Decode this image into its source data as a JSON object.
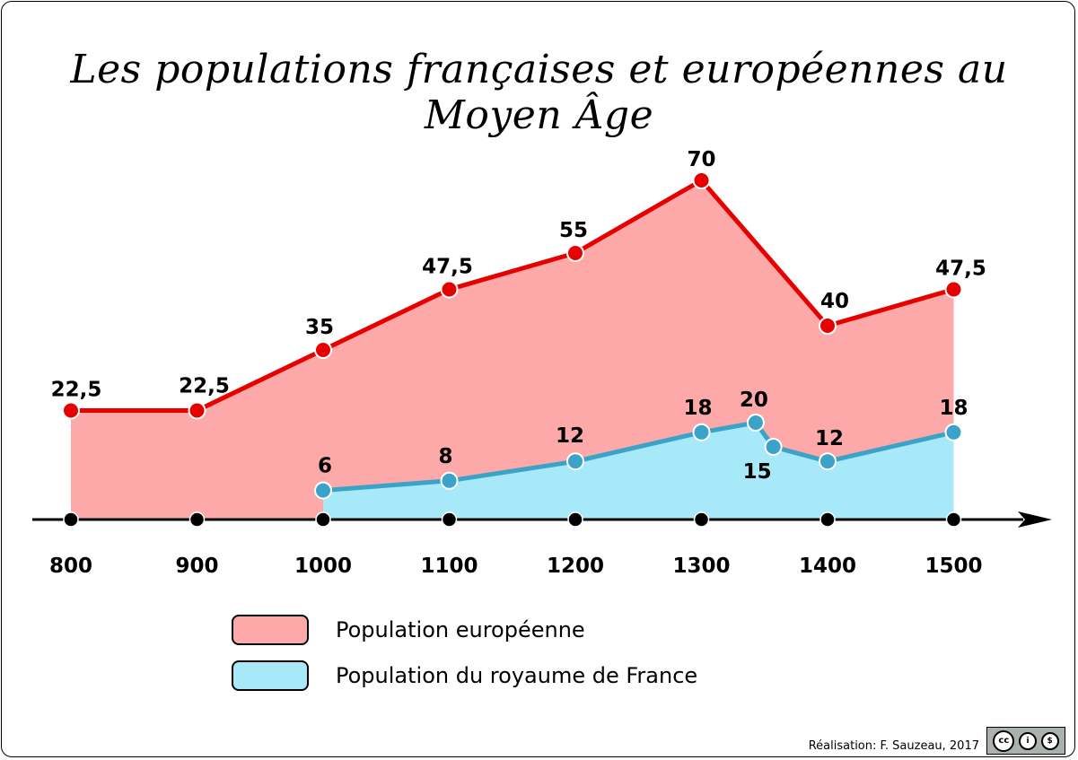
{
  "chart_data": {
    "type": "area",
    "title": "Les populations françaises et européennes au Moyen Âge",
    "xlabel": "",
    "ylabel": "",
    "x_ticks": [
      800,
      900,
      1000,
      1100,
      1200,
      1300,
      1400,
      1500
    ],
    "ylim": [
      0,
      70
    ],
    "grid": false,
    "legend_position": "bottom",
    "series": [
      {
        "name": "Population européenne",
        "color": "#e60000",
        "fill": "#fda9a9",
        "x": [
          800,
          900,
          1000,
          1100,
          1200,
          1300,
          1400,
          1500
        ],
        "values": [
          22.5,
          22.5,
          35,
          47.5,
          55,
          70,
          40,
          47.5
        ],
        "labels": [
          "22,5",
          "22,5",
          "35",
          "47,5",
          "55",
          "70",
          "40",
          "47,5"
        ]
      },
      {
        "name": "Population du royaume de France",
        "color": "#3ba3c7",
        "fill": "#a7e8f9",
        "x": [
          1000,
          1100,
          1200,
          1300,
          1343,
          1357,
          1400,
          1500
        ],
        "values": [
          6,
          8,
          12,
          18,
          20,
          15,
          12,
          18
        ],
        "labels": [
          "6",
          "8",
          "12",
          "18",
          "20",
          "15",
          "12",
          "18"
        ]
      }
    ]
  },
  "legend": {
    "items": [
      {
        "label": "Population européenne",
        "color": "#fda9a9"
      },
      {
        "label": "Population du royaume de France",
        "color": "#a7e8f9"
      }
    ]
  },
  "credit": "Réalisation: F. Sauzeau, 2017",
  "license_badge": "cc-by-nc"
}
